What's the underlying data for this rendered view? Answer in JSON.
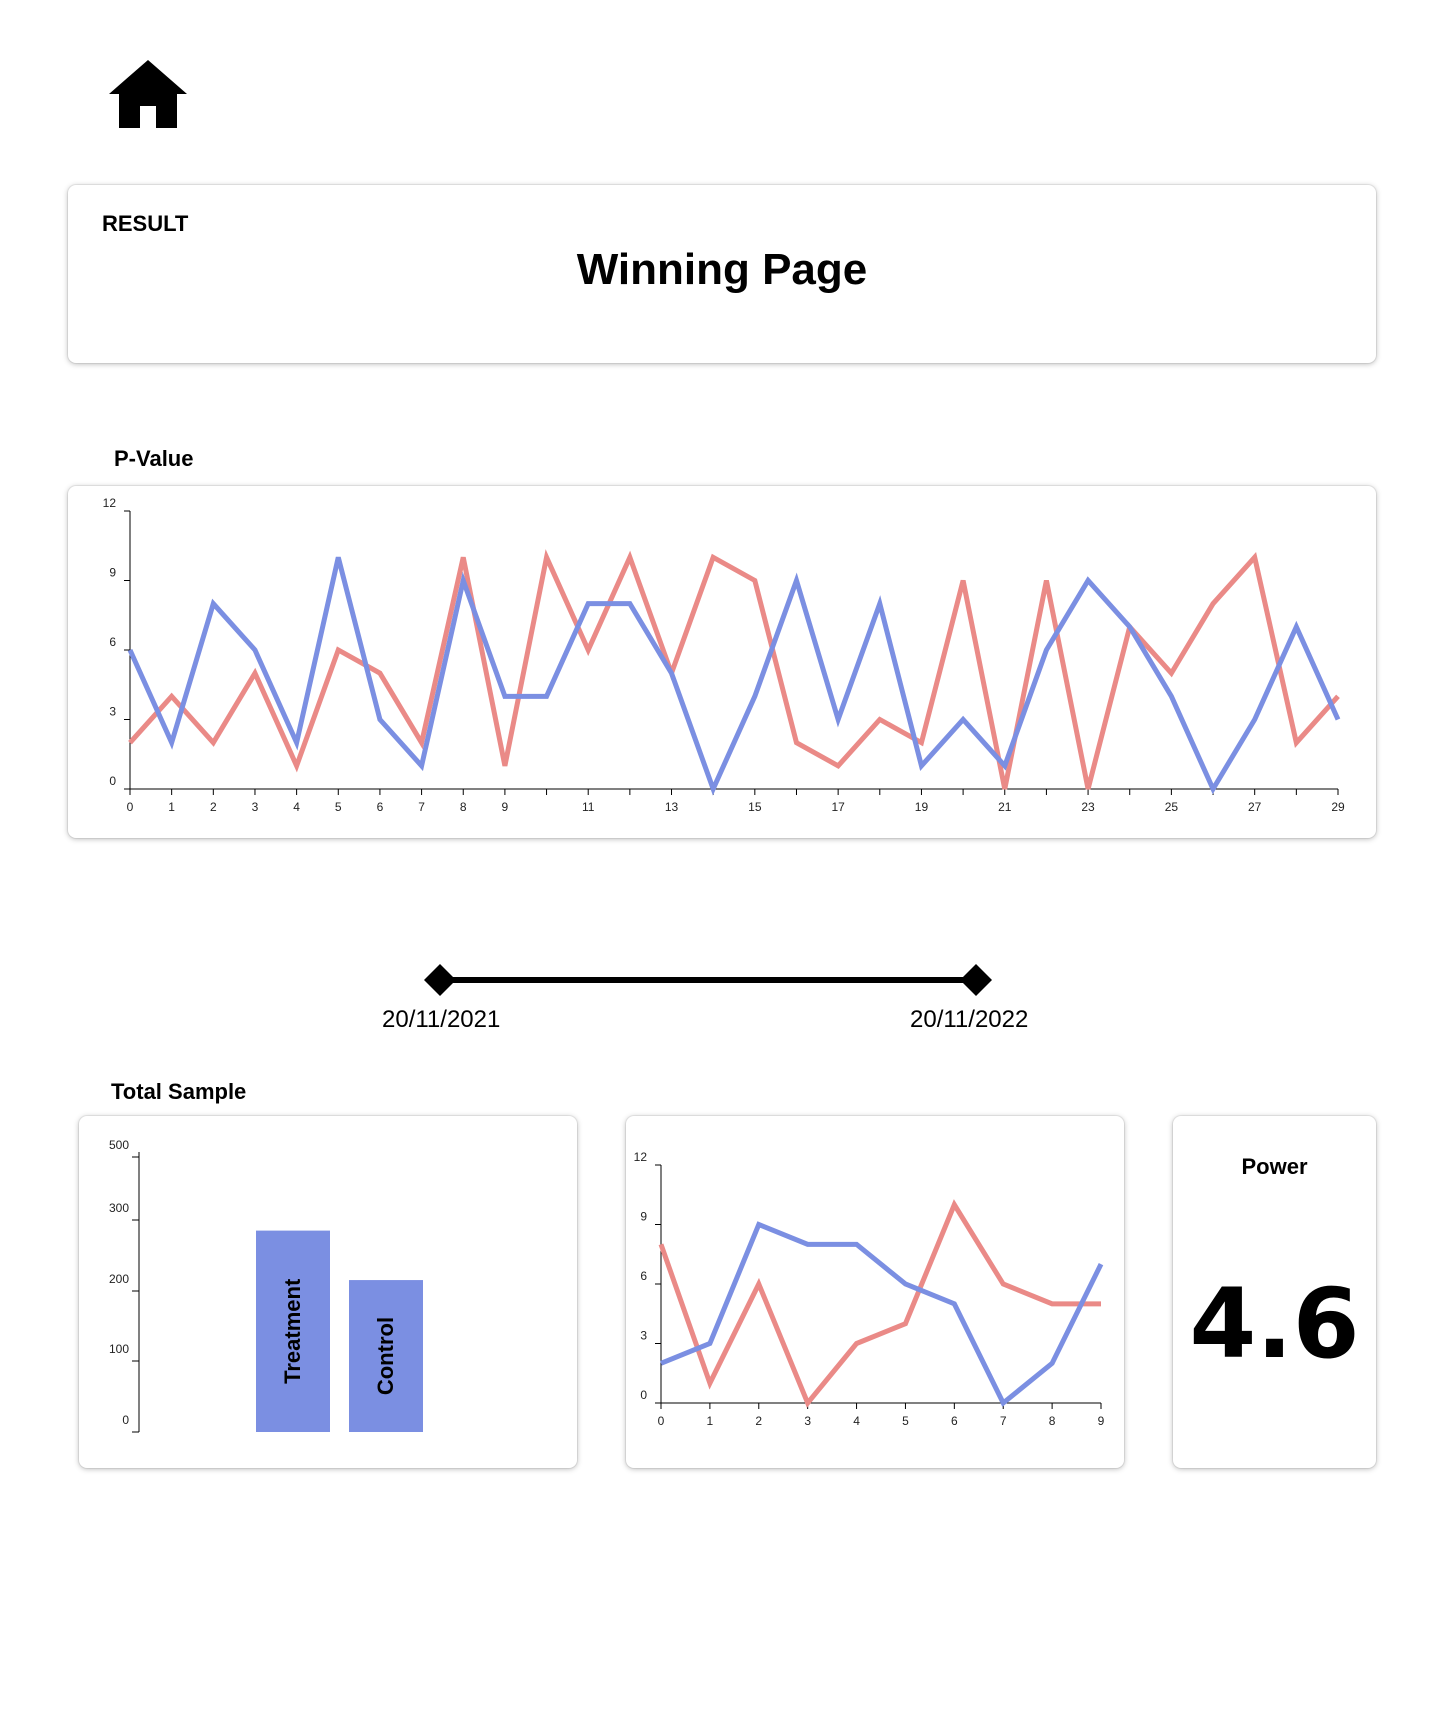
{
  "nav": {
    "home_icon": "home-icon"
  },
  "result": {
    "label": "RESULT",
    "title": "Winning Page"
  },
  "pvalue": {
    "label": "P-Value"
  },
  "date_range": {
    "start": "20/11/2021",
    "end": "20/11/2022"
  },
  "sample": {
    "label": "Total Sample"
  },
  "power": {
    "label": "Power",
    "value": "4.6"
  },
  "colors": {
    "treatment": "#7b8fe2",
    "control": "#ea8a87",
    "slider": "#000000"
  },
  "chart_data": [
    {
      "type": "line",
      "x": [
        0,
        1,
        2,
        3,
        4,
        5,
        6,
        7,
        8,
        9,
        10,
        11,
        12,
        13,
        14,
        15,
        16,
        17,
        18,
        19,
        20,
        21,
        22,
        23,
        24,
        25,
        26,
        27,
        28,
        29
      ],
      "xticks": [
        "0",
        "1",
        "2",
        "3",
        "4",
        "5",
        "6",
        "7",
        "8",
        "9",
        "11",
        "13",
        "15",
        "17",
        "19",
        "21",
        "23",
        "25",
        "27",
        "29"
      ],
      "yticks": [
        0,
        3,
        6,
        9,
        12
      ],
      "ylim": [
        0,
        12
      ],
      "series": [
        {
          "color": "#ea8a87",
          "values": [
            2,
            4,
            2,
            5,
            1,
            6,
            5,
            2,
            10,
            1,
            10,
            6,
            10,
            5,
            10,
            9,
            2,
            1,
            3,
            2,
            9,
            0,
            9,
            0,
            7,
            5,
            8,
            10,
            2,
            4
          ]
        },
        {
          "color": "#7b8fe2",
          "values": [
            6,
            2,
            8,
            6,
            2,
            10,
            3,
            1,
            9,
            4,
            4,
            8,
            8,
            5,
            0,
            4,
            9,
            3,
            8,
            1,
            3,
            1,
            6,
            9,
            7,
            4,
            0,
            3,
            7,
            3
          ]
        }
      ]
    },
    {
      "type": "bar",
      "categories": [
        "Treatment",
        "Control"
      ],
      "values": [
        285,
        215
      ],
      "yticks": [
        "0",
        "100",
        "200",
        "300",
        "500"
      ],
      "color": "#7b8fe2"
    },
    {
      "type": "line",
      "x": [
        0,
        1,
        2,
        3,
        4,
        5,
        6,
        7,
        8,
        9
      ],
      "xticks": [
        "0",
        "1",
        "2",
        "3",
        "4",
        "5",
        "6",
        "7",
        "8",
        "9"
      ],
      "yticks": [
        0,
        3,
        6,
        9,
        12
      ],
      "ylim": [
        0,
        12
      ],
      "series": [
        {
          "color": "#ea8a87",
          "values": [
            8,
            1,
            6,
            0,
            3,
            4,
            10,
            6,
            5,
            5
          ]
        },
        {
          "color": "#7b8fe2",
          "values": [
            2,
            3,
            9,
            8,
            8,
            6,
            5,
            0,
            2,
            7
          ]
        }
      ]
    }
  ]
}
